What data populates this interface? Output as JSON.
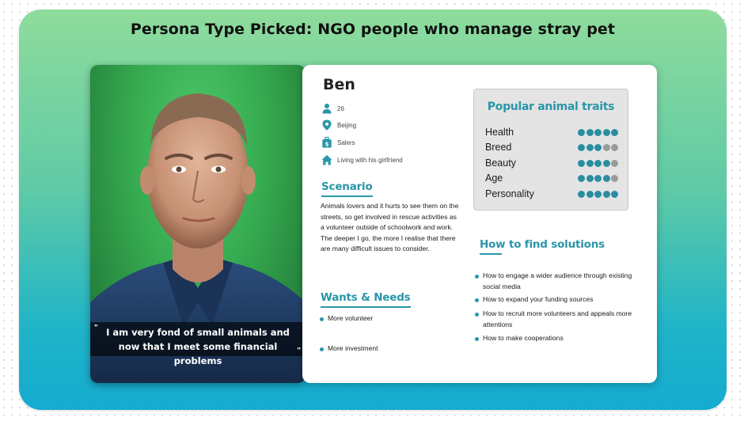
{
  "title": "Persona Type Picked: NGO people who manage stray pet",
  "photo": {
    "quote": "I am very fond of small animals and now that I meet some financial problems",
    "quote_open_mark": "\"",
    "quote_close_mark": "\""
  },
  "profile": {
    "name": "Ben",
    "details": [
      {
        "icon": "person-icon",
        "text": "26"
      },
      {
        "icon": "location-pin-icon",
        "text": "Beijing"
      },
      {
        "icon": "briefcase-icon",
        "text": "Salers"
      },
      {
        "icon": "home-icon",
        "text": "Living with his girlfriend"
      }
    ]
  },
  "scenario": {
    "heading": "Scenario",
    "text": "Animals lovers and it hurts to see them on the streets, so  get involved in rescue activities as a volunteer outside of schoolwork and work. The deeper I go, the more I realise that there are many difficult issues to consider."
  },
  "wants": {
    "heading": "Wants & Needs",
    "items": [
      "More volunteer",
      "More investment"
    ]
  },
  "traits": {
    "title": "Popular animal traits",
    "items": [
      {
        "label": "Health",
        "rating": 5,
        "max": 5
      },
      {
        "label": "Breed",
        "rating": 3,
        "max": 5
      },
      {
        "label": "Beauty",
        "rating": 4,
        "max": 5
      },
      {
        "label": "Age",
        "rating": 4,
        "max": 5
      },
      {
        "label": "Personality",
        "rating": 5,
        "max": 5
      }
    ]
  },
  "solutions": {
    "heading": "How to find solutions",
    "items": [
      "How to engage a wider audience through existing social media",
      "How to expand your funding sources",
      "How to recruit more volunteers and appeals more attentions",
      "How to make cooperations"
    ]
  },
  "colors": {
    "accent": "#2996a8",
    "dot_on": "#2a8ea0",
    "dot_off": "#9b9b9b",
    "background_top": "#8fdc9c",
    "background_bottom": "#14abd0"
  }
}
